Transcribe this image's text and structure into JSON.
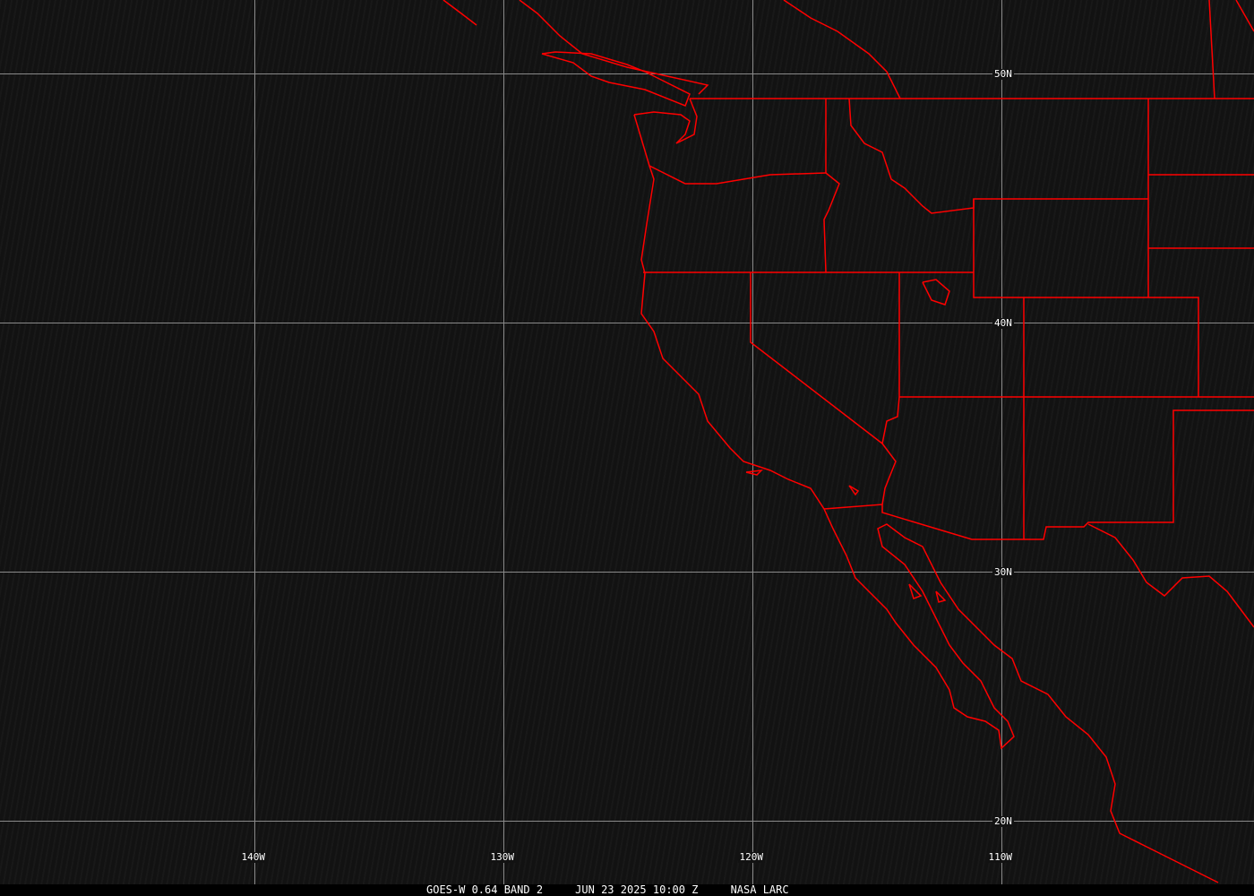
{
  "caption": {
    "satellite": "GOES-W 0.64 BAND 2",
    "datetime": "JUN 23 2025 10:00 Z",
    "source": "NASA LARC"
  },
  "grid": {
    "longitudes": [
      {
        "value": -140,
        "label": "140W"
      },
      {
        "value": -130,
        "label": "130W"
      },
      {
        "value": -120,
        "label": "120W"
      },
      {
        "value": -110,
        "label": "110W"
      }
    ],
    "latitudes": [
      {
        "value": 50,
        "label": "50N"
      },
      {
        "value": 40,
        "label": "40N"
      },
      {
        "value": 30,
        "label": "30N"
      },
      {
        "value": 20,
        "label": "20N"
      }
    ]
  },
  "colors": {
    "borders": "#ff0000",
    "grid": "#8a8a8a",
    "background": "#121212",
    "text": "#ffffff"
  }
}
